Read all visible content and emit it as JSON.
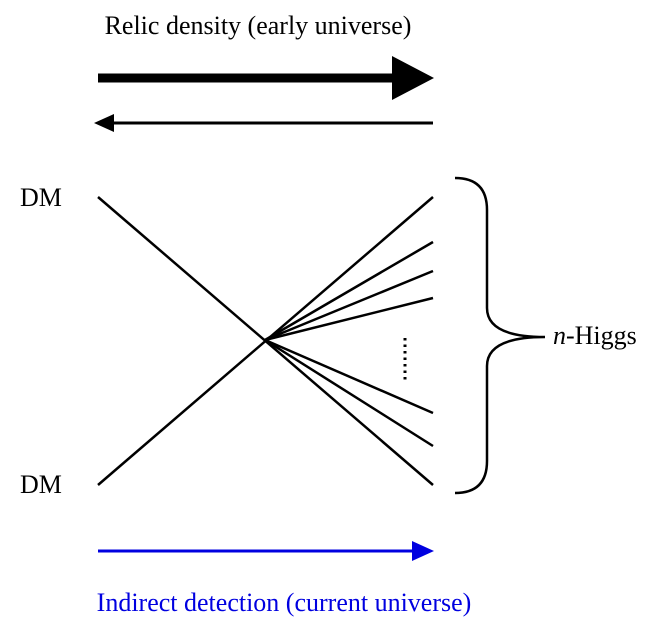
{
  "title": "Relic density (early universe)",
  "labels": {
    "dm_top": "DM",
    "dm_bottom": "DM",
    "higgs": {
      "italic": "n",
      "rest": "-Higgs"
    }
  },
  "footer": "Indirect detection (current universe)"
}
